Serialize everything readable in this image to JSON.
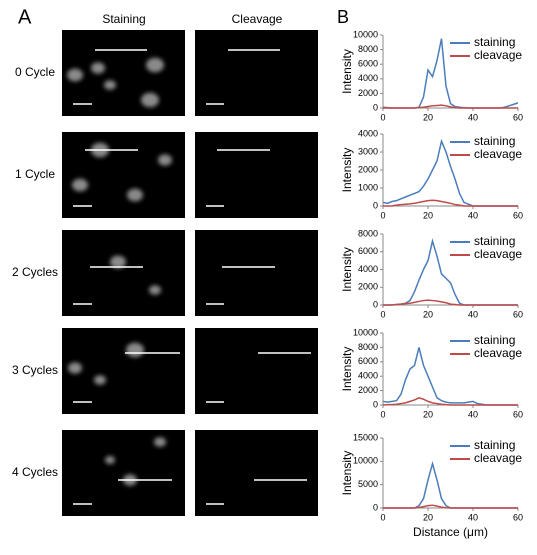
{
  "panel_a": {
    "label": "A",
    "columns": [
      "Staining",
      "Cleavage"
    ],
    "rows": [
      "0 Cycle",
      "1 Cycle",
      "2 Cycles",
      "3 Cycles",
      "4 Cycles"
    ]
  },
  "panel_b": {
    "label": "B"
  },
  "chart_data": [
    {
      "type": "line",
      "ylabel": "Intensity",
      "x": [
        0,
        2,
        4,
        6,
        8,
        10,
        12,
        14,
        16,
        18,
        20,
        22,
        24,
        26,
        28,
        30,
        32,
        34,
        36,
        38,
        40,
        42,
        44,
        46,
        48,
        50,
        52,
        54,
        56,
        58,
        60
      ],
      "xlim": [
        0,
        60
      ],
      "xticks": [
        0,
        20,
        40,
        60
      ],
      "ylim": [
        0,
        10000
      ],
      "yticks": [
        0,
        2000,
        4000,
        6000,
        8000,
        10000
      ],
      "series": [
        {
          "name": "staining",
          "color": "#4a7ebb",
          "values": [
            100,
            50,
            0,
            0,
            0,
            0,
            0,
            0,
            100,
            1500,
            5200,
            4300,
            6500,
            9500,
            3000,
            600,
            200,
            100,
            50,
            0,
            0,
            0,
            0,
            0,
            0,
            0,
            0,
            100,
            300,
            500,
            700
          ]
        },
        {
          "name": "cleavage",
          "color": "#be4b48",
          "values": [
            0,
            0,
            0,
            0,
            0,
            0,
            0,
            0,
            50,
            100,
            200,
            300,
            350,
            400,
            300,
            150,
            50,
            0,
            0,
            0,
            0,
            0,
            0,
            0,
            0,
            0,
            0,
            0,
            0,
            0,
            0
          ]
        }
      ]
    },
    {
      "type": "line",
      "ylabel": "Intensity",
      "x": [
        0,
        2,
        4,
        6,
        8,
        10,
        12,
        14,
        16,
        18,
        20,
        22,
        24,
        26,
        28,
        30,
        32,
        34,
        36,
        38,
        40,
        42,
        44,
        46,
        48,
        50,
        52,
        54,
        56,
        58,
        60
      ],
      "xlim": [
        0,
        60
      ],
      "xticks": [
        0,
        20,
        40,
        60
      ],
      "ylim": [
        0,
        4000
      ],
      "yticks": [
        0,
        1000,
        2000,
        3000,
        4000
      ],
      "series": [
        {
          "name": "staining",
          "color": "#4a7ebb",
          "values": [
            200,
            150,
            250,
            300,
            400,
            500,
            600,
            700,
            800,
            1100,
            1500,
            2000,
            2500,
            3600,
            3000,
            2200,
            1500,
            700,
            200,
            100,
            0,
            0,
            0,
            0,
            0,
            0,
            0,
            0,
            0,
            0,
            0
          ]
        },
        {
          "name": "cleavage",
          "color": "#be4b48",
          "values": [
            0,
            0,
            0,
            50,
            80,
            100,
            120,
            150,
            200,
            250,
            300,
            320,
            300,
            250,
            200,
            150,
            80,
            50,
            0,
            0,
            0,
            0,
            0,
            0,
            0,
            0,
            0,
            0,
            0,
            0,
            0
          ]
        }
      ]
    },
    {
      "type": "line",
      "ylabel": "Intensity",
      "x": [
        0,
        2,
        4,
        6,
        8,
        10,
        12,
        14,
        16,
        18,
        20,
        22,
        24,
        26,
        28,
        30,
        32,
        34,
        36,
        38,
        40,
        42,
        44,
        46,
        48,
        50,
        52,
        54,
        56,
        58,
        60
      ],
      "xlim": [
        0,
        60
      ],
      "xticks": [
        0,
        20,
        40,
        60
      ],
      "ylim": [
        0,
        8000
      ],
      "yticks": [
        0,
        2000,
        4000,
        6000,
        8000
      ],
      "series": [
        {
          "name": "staining",
          "color": "#4a7ebb",
          "values": [
            0,
            0,
            0,
            50,
            100,
            200,
            500,
            1500,
            2800,
            4000,
            5000,
            7200,
            5500,
            3500,
            3000,
            2500,
            1200,
            200,
            0,
            0,
            0,
            0,
            0,
            0,
            0,
            0,
            0,
            0,
            0,
            0,
            0
          ]
        },
        {
          "name": "cleavage",
          "color": "#be4b48",
          "values": [
            0,
            0,
            0,
            50,
            100,
            150,
            200,
            300,
            400,
            500,
            550,
            500,
            450,
            350,
            250,
            100,
            50,
            0,
            0,
            0,
            0,
            0,
            0,
            0,
            0,
            0,
            0,
            0,
            0,
            0,
            0
          ]
        }
      ]
    },
    {
      "type": "line",
      "ylabel": "Intensity",
      "x": [
        0,
        2,
        4,
        6,
        8,
        10,
        12,
        14,
        16,
        18,
        20,
        22,
        24,
        26,
        28,
        30,
        32,
        34,
        36,
        38,
        40,
        42,
        44,
        46,
        48,
        50,
        52,
        54,
        56,
        58,
        60
      ],
      "xlim": [
        0,
        60
      ],
      "xticks": [
        0,
        20,
        40,
        60
      ],
      "ylim": [
        0,
        10000
      ],
      "yticks": [
        0,
        2000,
        4000,
        6000,
        8000,
        10000
      ],
      "series": [
        {
          "name": "staining",
          "color": "#4a7ebb",
          "values": [
            500,
            400,
            500,
            600,
            1500,
            3500,
            5000,
            5500,
            8000,
            5500,
            4000,
            2500,
            1000,
            600,
            400,
            300,
            300,
            300,
            300,
            400,
            500,
            200,
            100,
            0,
            0,
            0,
            0,
            0,
            0,
            0,
            0
          ]
        },
        {
          "name": "cleavage",
          "color": "#be4b48",
          "values": [
            0,
            50,
            50,
            100,
            200,
            300,
            500,
            700,
            1000,
            800,
            500,
            300,
            200,
            100,
            50,
            0,
            0,
            0,
            0,
            0,
            0,
            0,
            0,
            0,
            0,
            0,
            0,
            0,
            0,
            0,
            0
          ]
        }
      ]
    },
    {
      "type": "line",
      "ylabel": "Intensity",
      "xlabel": "Distance (μm)",
      "x": [
        0,
        2,
        4,
        6,
        8,
        10,
        12,
        14,
        16,
        18,
        20,
        22,
        24,
        26,
        28,
        30,
        32,
        34,
        36,
        38,
        40,
        42,
        44,
        46,
        48,
        50,
        52,
        54,
        56,
        58,
        60
      ],
      "xlim": [
        0,
        60
      ],
      "xticks": [
        0,
        20,
        40,
        60
      ],
      "ylim": [
        0,
        15000
      ],
      "yticks": [
        0,
        5000,
        10000,
        15000
      ],
      "series": [
        {
          "name": "staining",
          "color": "#4a7ebb",
          "values": [
            0,
            0,
            0,
            0,
            0,
            0,
            0,
            0,
            500,
            2000,
            6000,
            9500,
            6000,
            2000,
            500,
            0,
            0,
            0,
            0,
            0,
            0,
            0,
            0,
            0,
            0,
            0,
            0,
            0,
            0,
            0,
            0
          ]
        },
        {
          "name": "cleavage",
          "color": "#be4b48",
          "values": [
            0,
            0,
            0,
            0,
            0,
            0,
            0,
            0,
            100,
            300,
            500,
            600,
            400,
            200,
            50,
            0,
            0,
            0,
            0,
            0,
            0,
            0,
            0,
            0,
            0,
            0,
            0,
            0,
            0,
            0,
            0
          ]
        }
      ]
    }
  ]
}
